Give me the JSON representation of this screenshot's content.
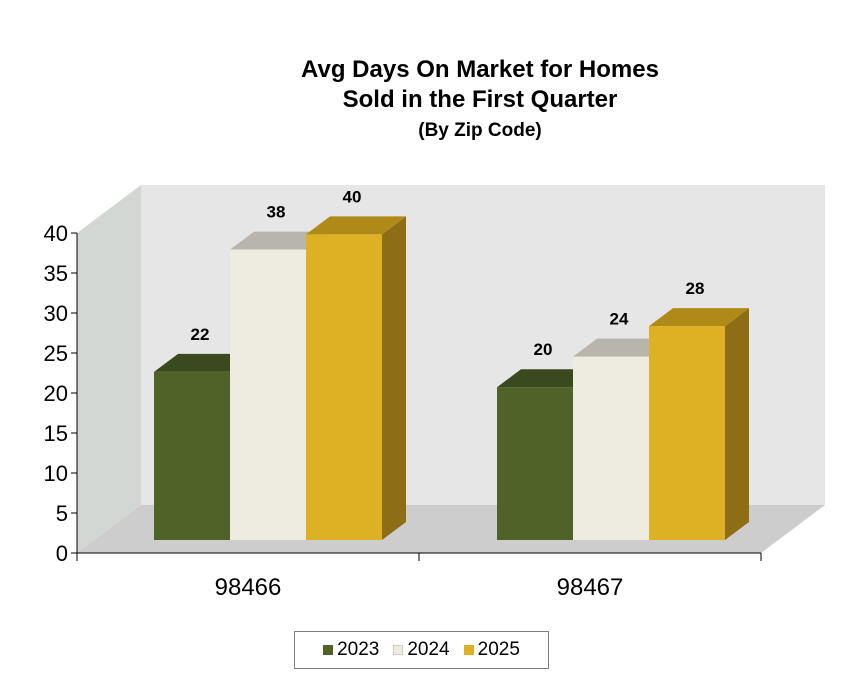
{
  "chart_data": {
    "type": "bar",
    "title": "Avg Days On Market for Homes",
    "title_line2": "Sold in the First Quarter",
    "subtitle": "(By Zip Code)",
    "categories": [
      "98466",
      "98467"
    ],
    "series": [
      {
        "name": "2023",
        "values": [
          22,
          20
        ],
        "color": "#4f6228",
        "top": "#3b4a1e",
        "side": "#3b4a1e"
      },
      {
        "name": "2024",
        "values": [
          38,
          24
        ],
        "color": "#eeece1",
        "top": "#b8b6ac",
        "side": "#d9d7cc"
      },
      {
        "name": "2025",
        "values": [
          40,
          28
        ],
        "color": "#deb024",
        "top": "#b08a18",
        "side": "#8d6e15"
      }
    ],
    "ylim": [
      0,
      40
    ],
    "yticks": [
      0,
      5,
      10,
      15,
      20,
      25,
      30,
      35,
      40
    ],
    "xlabel": "",
    "ylabel": "",
    "legend_position": "bottom",
    "colors": {
      "back_wall": "#e6e6e6",
      "side_wall": "#d3d7d3",
      "floor": "#cdcdcd"
    }
  }
}
